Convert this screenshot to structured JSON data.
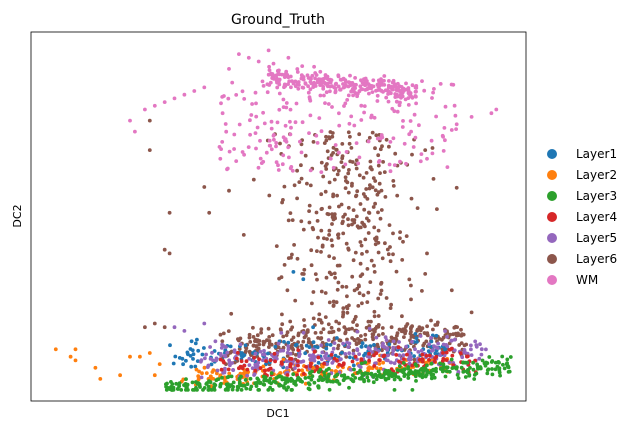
{
  "chart_data": {
    "type": "scatter",
    "title": "Ground_Truth",
    "xlabel": "DC1",
    "ylabel": "DC2",
    "xlim": [
      0,
      100
    ],
    "ylim": [
      0,
      100
    ],
    "ticks": "none",
    "grid": false,
    "legend_position": "right",
    "series": [
      {
        "name": "Layer1",
        "color": "#1f77b4"
      },
      {
        "name": "Layer2",
        "color": "#ff7f0e"
      },
      {
        "name": "Layer3",
        "color": "#2ca02c"
      },
      {
        "name": "Layer4",
        "color": "#d62728"
      },
      {
        "name": "Layer5",
        "color": "#9467bd"
      },
      {
        "name": "Layer6",
        "color": "#8c564b"
      },
      {
        "name": "WM",
        "color": "#e377c2"
      }
    ]
  }
}
